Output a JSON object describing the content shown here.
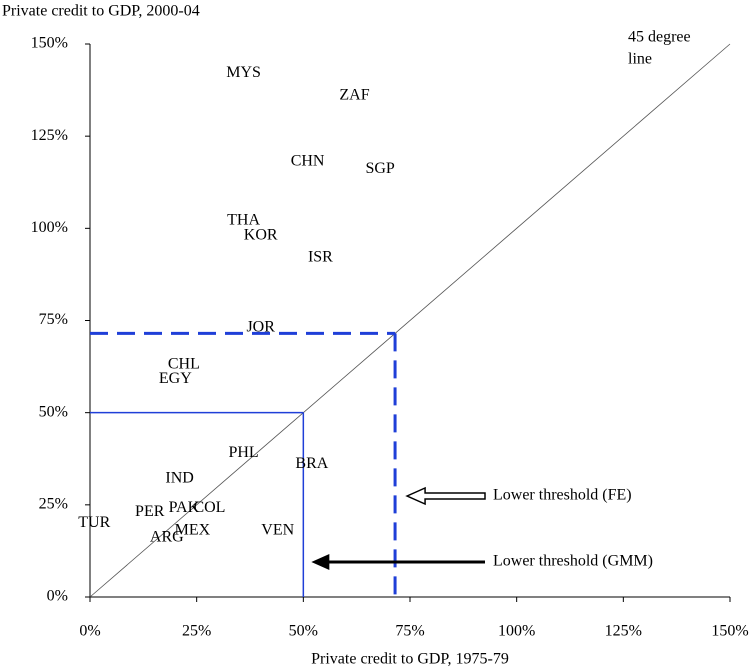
{
  "chart_data": {
    "type": "scatter",
    "ylabel": "Private credit to GDP, 2000-04",
    "xlabel": "Private credit to GDP, 1975-79",
    "labels": [
      "MYS",
      "ZAF",
      "CHN",
      "SGP",
      "THA",
      "KOR",
      "ISR",
      "JOR",
      "CHL",
      "EGY",
      "PHL",
      "BRA",
      "IND",
      "COL",
      "PAK",
      "PER",
      "TUR",
      "MEX",
      "ARG",
      "VEN"
    ],
    "x": [
      36,
      62,
      51,
      68,
      36,
      40,
      54,
      40,
      22,
      20,
      36,
      52,
      21,
      28,
      22,
      14,
      1,
      24,
      18,
      44
    ],
    "values": [
      142,
      136,
      118,
      116,
      102,
      98,
      92,
      73,
      63,
      59,
      39,
      36,
      32,
      24,
      24,
      23,
      20,
      18,
      16,
      18
    ],
    "xlim": [
      0,
      150
    ],
    "ylim": [
      0,
      150
    ],
    "xticks": [
      {
        "value": 0,
        "label": "0%"
      },
      {
        "value": 25,
        "label": "25%"
      },
      {
        "value": 50,
        "label": "50%"
      },
      {
        "value": 75,
        "label": "75%"
      },
      {
        "value": 100,
        "label": "100%"
      },
      {
        "value": 125,
        "label": "125%"
      },
      {
        "value": 150,
        "label": "150%"
      }
    ],
    "yticks": [
      {
        "value": 0,
        "label": "0%"
      },
      {
        "value": 25,
        "label": "25%"
      },
      {
        "value": 50,
        "label": "50%"
      },
      {
        "value": 75,
        "label": "75%"
      },
      {
        "value": 100,
        "label": "100%"
      },
      {
        "value": 125,
        "label": "125%"
      },
      {
        "value": 150,
        "label": "150%"
      }
    ],
    "diagonal": true,
    "diagonal_label": [
      "45 degree",
      "line"
    ],
    "thresholds": [
      {
        "label": "Lower threshold (FE)",
        "value": 71.5,
        "style": "dashed",
        "arrow": "hollow",
        "color": "#1f3fd8"
      },
      {
        "label": "Lower threshold (GMM)",
        "value": 50,
        "style": "solid",
        "arrow": "solid",
        "color": "#1f3fd8"
      }
    ]
  }
}
